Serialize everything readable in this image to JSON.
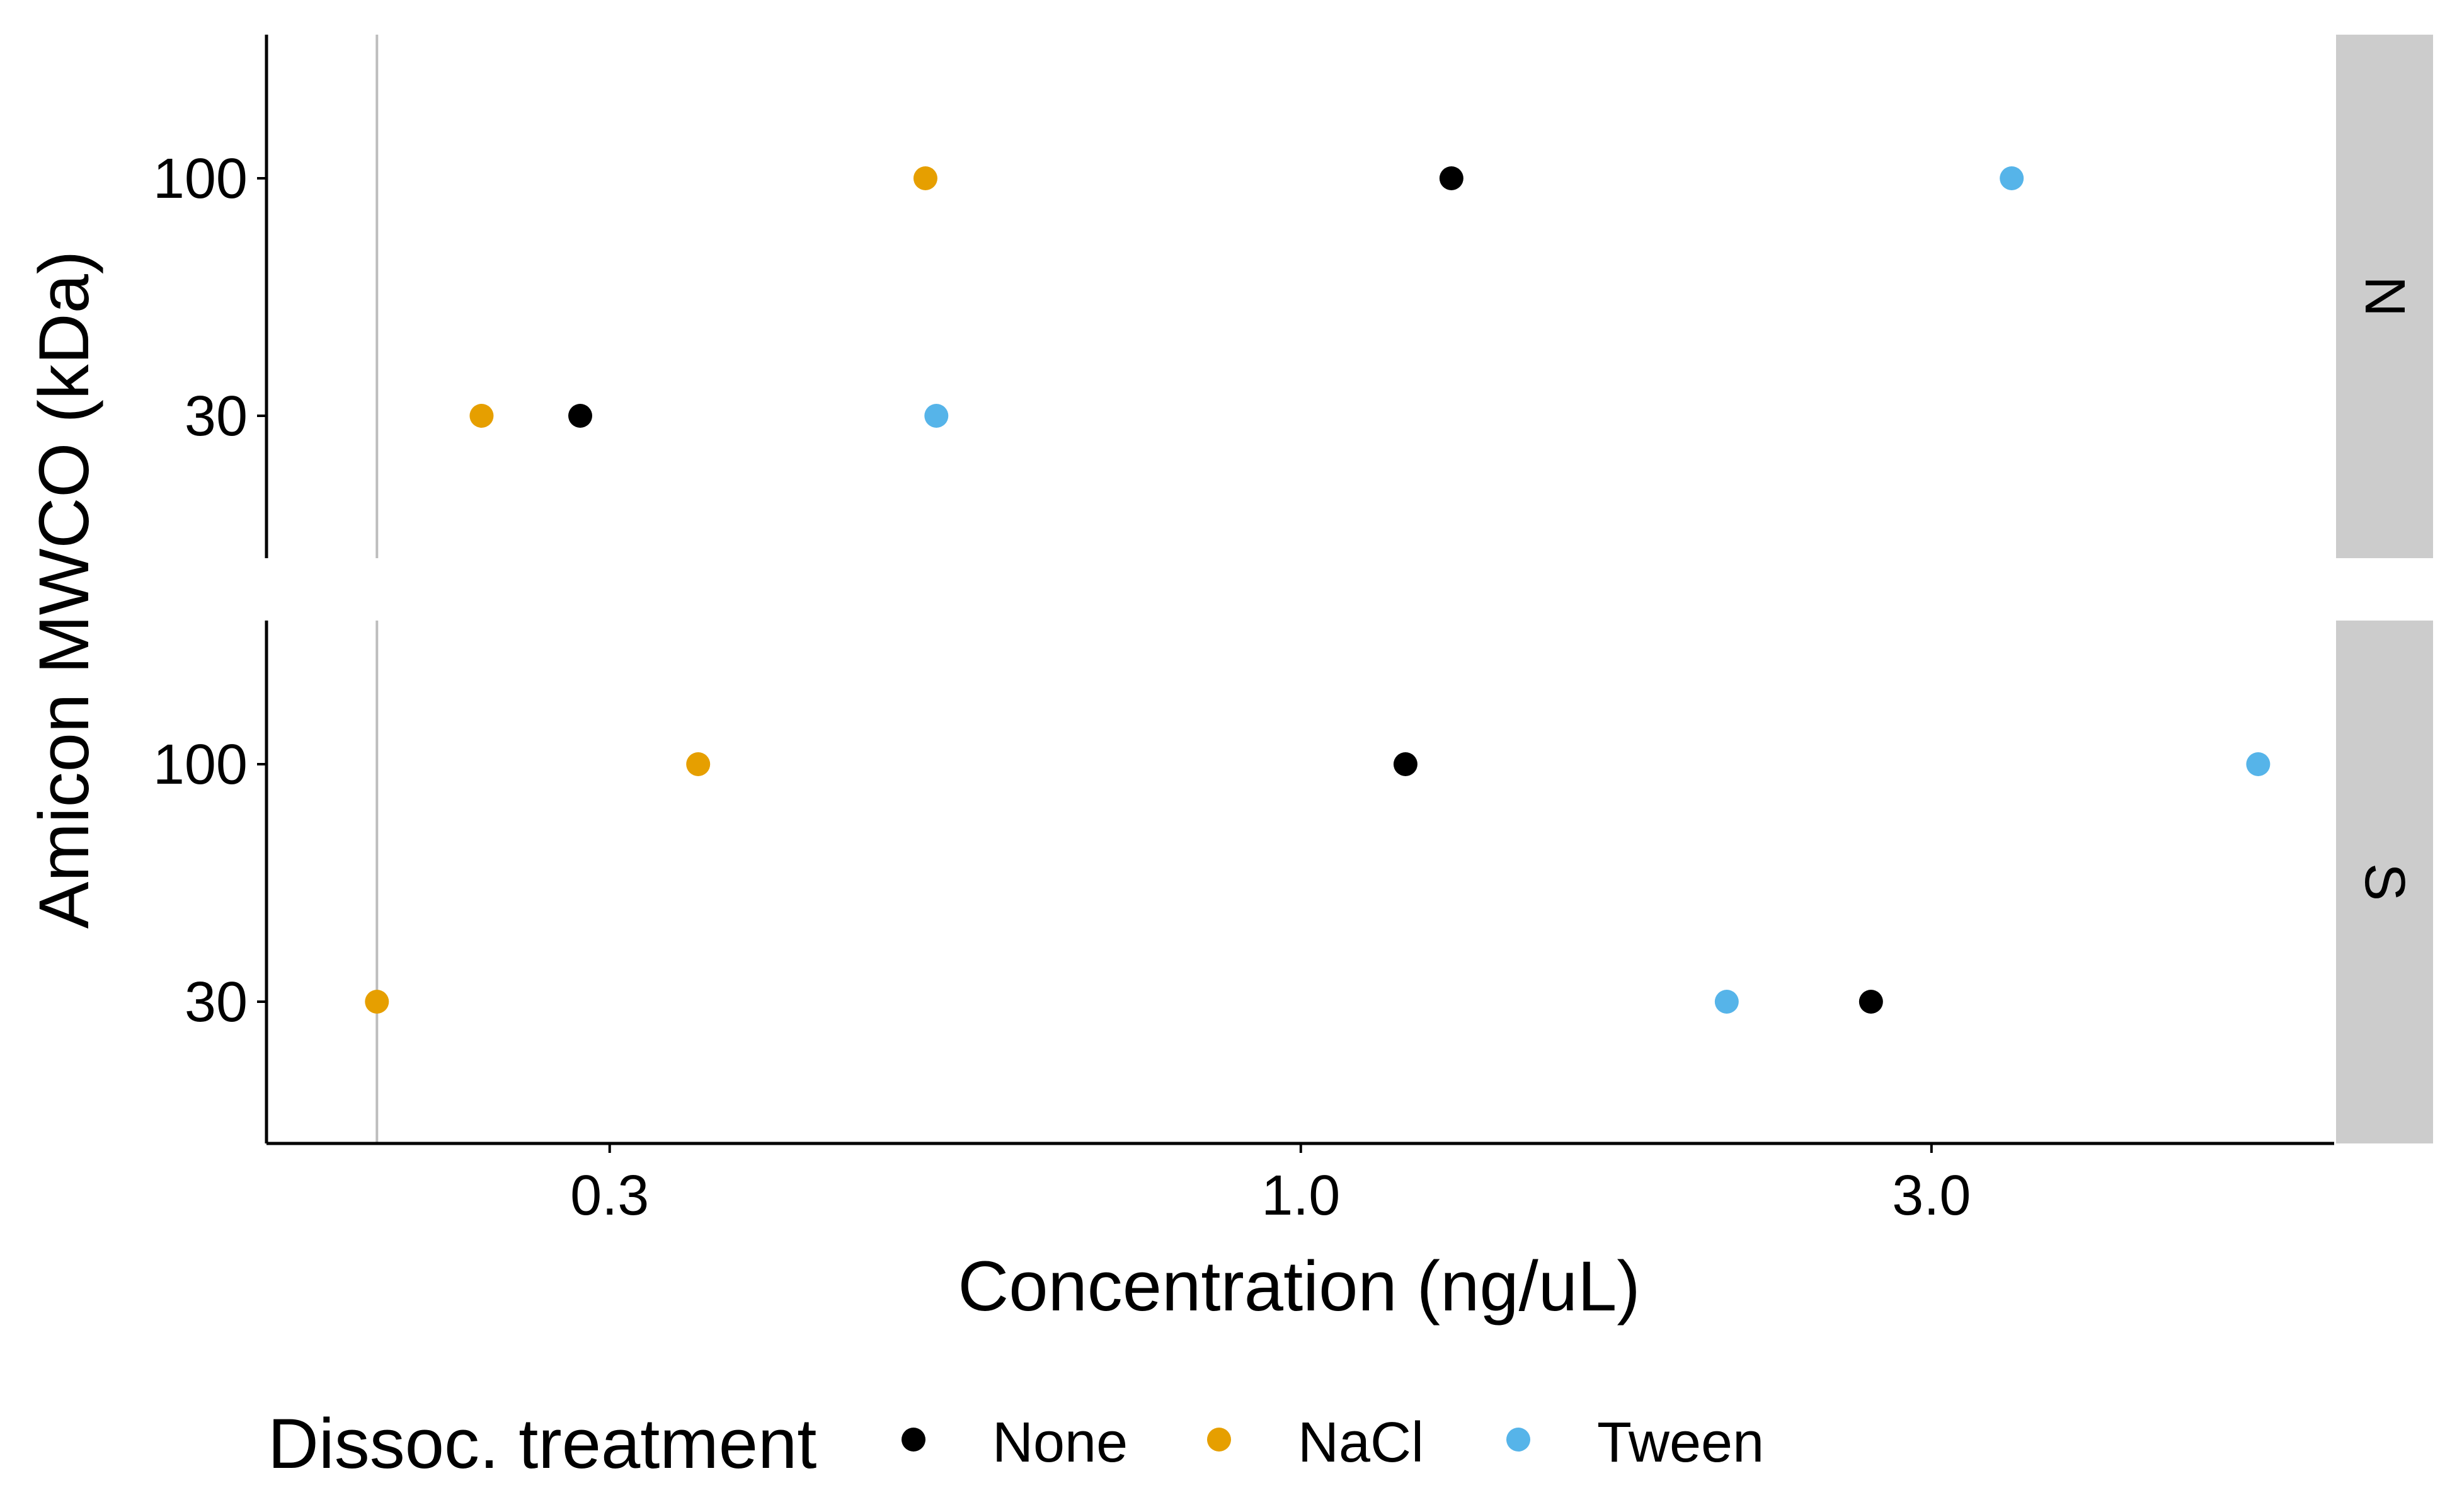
{
  "chart_data": {
    "type": "scatter",
    "xlabel": "Concentration (ng/uL)",
    "ylabel": "Amicon MWCO (kDa)",
    "x_scale": "log10",
    "x_ticks": [
      {
        "value": 0.3,
        "label": "0.3"
      },
      {
        "value": 1.0,
        "label": "1.0"
      },
      {
        "value": 3.0,
        "label": "3.0"
      }
    ],
    "y_categories": [
      "30",
      "100"
    ],
    "reference_line_x": 0.2,
    "xlim": [
      0.165,
      6.05
    ],
    "facet_order": [
      "N",
      "S"
    ],
    "legend": {
      "title": "Dissoc. treatment",
      "position": "bottom",
      "entries": [
        {
          "name": "None",
          "color": "#000000"
        },
        {
          "name": "NaCl",
          "color": "#E69F00"
        },
        {
          "name": "Tween",
          "color": "#56B4E9"
        }
      ]
    },
    "facets": [
      {
        "strip": "N",
        "points": [
          {
            "treatment": "NaCl",
            "mwco": "100",
            "x": 0.52
          },
          {
            "treatment": "None",
            "mwco": "100",
            "x": 1.3
          },
          {
            "treatment": "Tween",
            "mwco": "100",
            "x": 3.45
          },
          {
            "treatment": "NaCl",
            "mwco": "30",
            "x": 0.24
          },
          {
            "treatment": "None",
            "mwco": "30",
            "x": 0.285
          },
          {
            "treatment": "Tween",
            "mwco": "30",
            "x": 0.53
          }
        ]
      },
      {
        "strip": "S",
        "points": [
          {
            "treatment": "NaCl",
            "mwco": "100",
            "x": 0.35
          },
          {
            "treatment": "None",
            "mwco": "100",
            "x": 1.2
          },
          {
            "treatment": "Tween",
            "mwco": "100",
            "x": 5.3
          },
          {
            "treatment": "NaCl",
            "mwco": "30",
            "x": 0.2
          },
          {
            "treatment": "Tween",
            "mwco": "30",
            "x": 2.1
          },
          {
            "treatment": "None",
            "mwco": "30",
            "x": 2.7
          }
        ]
      }
    ]
  }
}
